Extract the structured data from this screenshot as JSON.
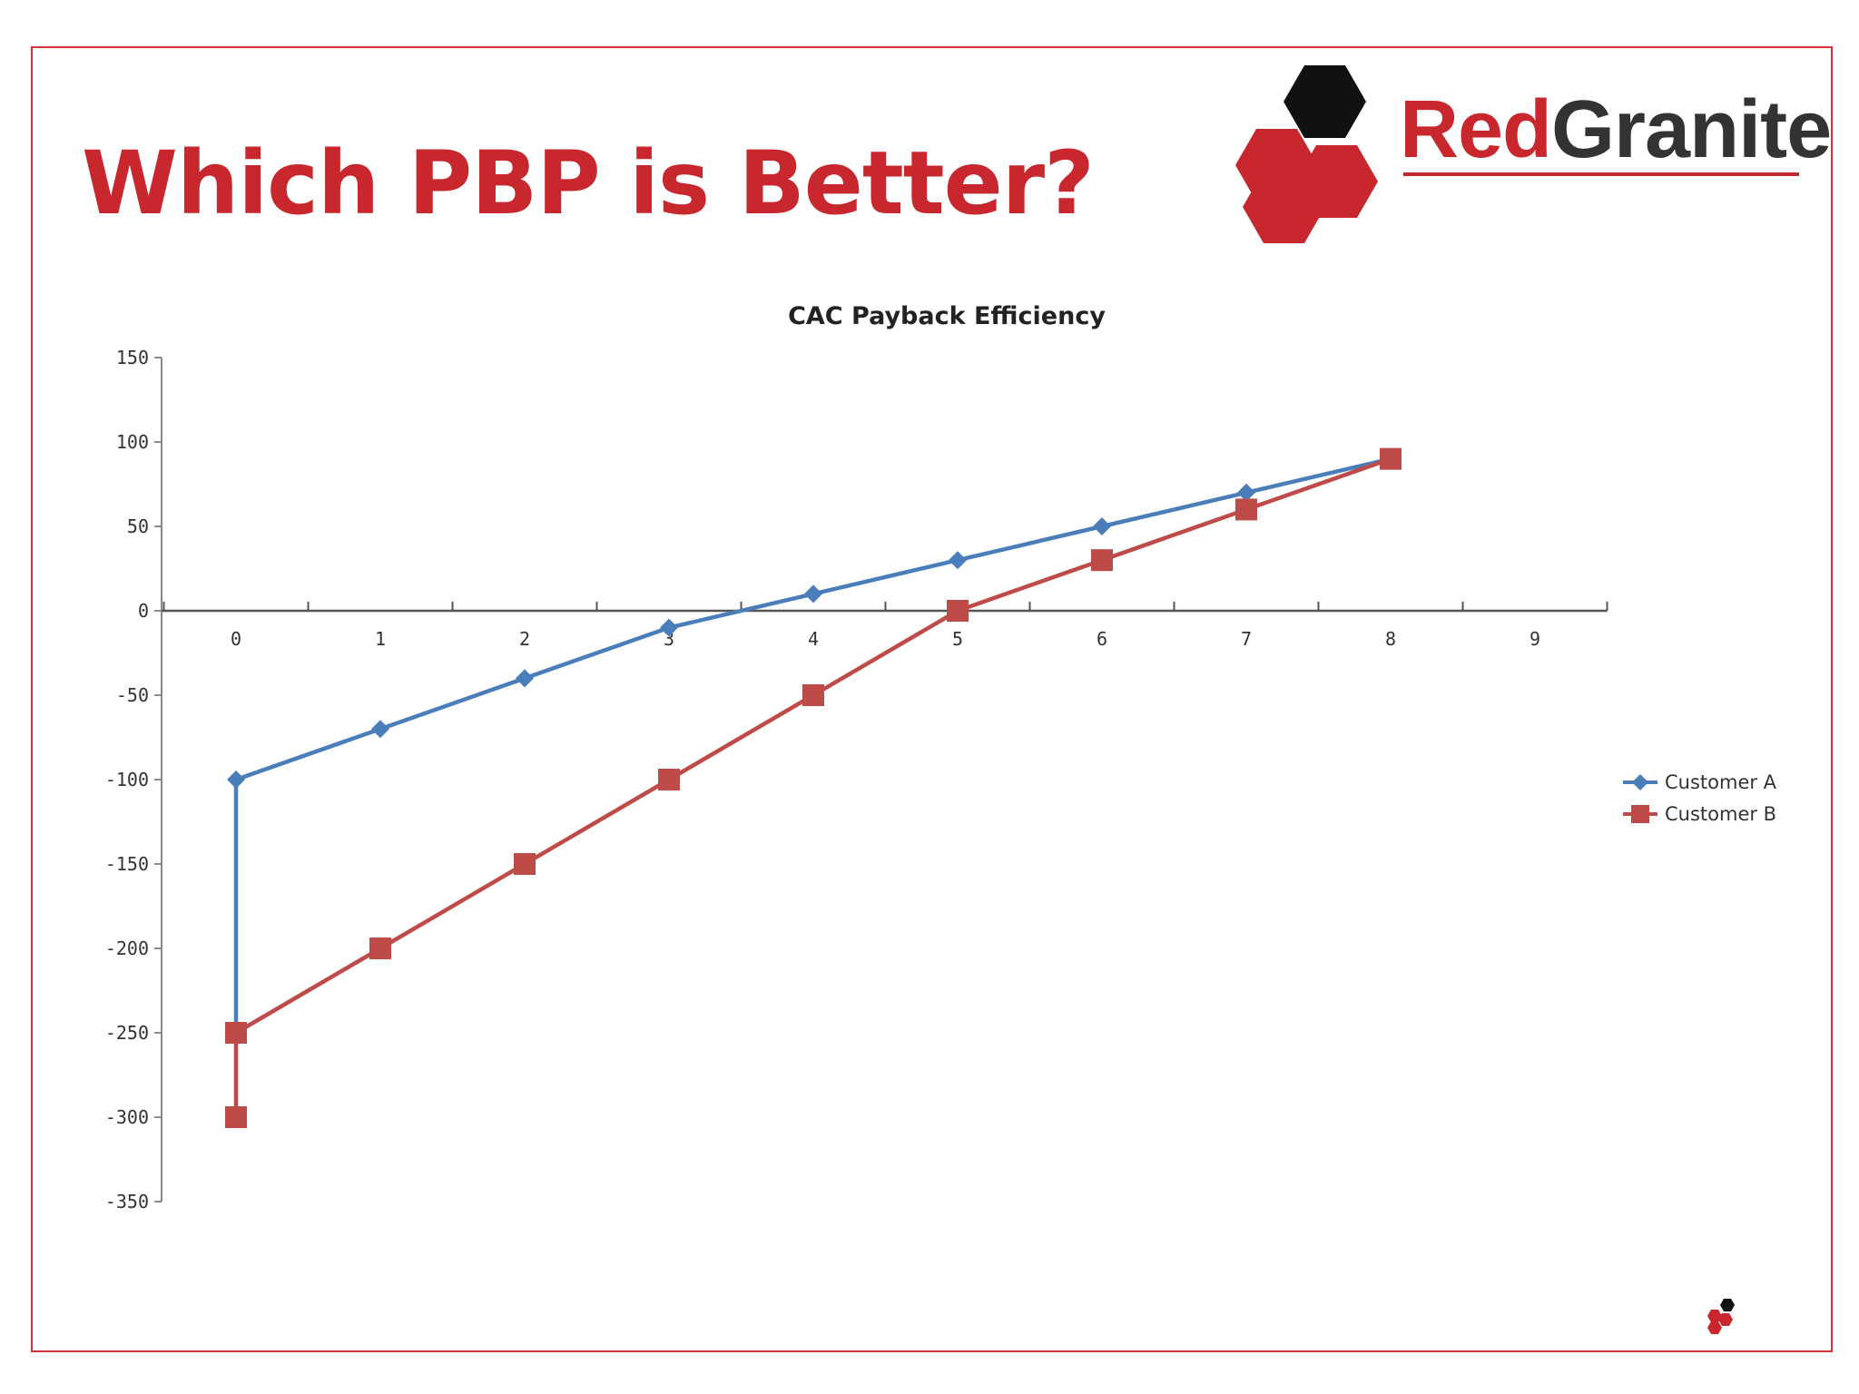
{
  "slide": {
    "title": "Which PBP is Better?"
  },
  "logo": {
    "brand_part1": "Red",
    "brand_part2": "Granite",
    "colors": {
      "red": "#c8282d",
      "dark": "#333333",
      "hex_black": "#111111"
    }
  },
  "colors": {
    "frame": "#d0343a",
    "title": "#c8282d",
    "customer_a": "#4a7ebb",
    "customer_b": "#be4b48"
  },
  "chart_data": {
    "type": "line",
    "title": "CAC Payback Efficiency",
    "xlabel": "",
    "ylabel": "",
    "xlim": [
      -0.5,
      9.5
    ],
    "ylim": [
      -350,
      150
    ],
    "x_ticks": [
      0,
      1,
      2,
      3,
      4,
      5,
      6,
      7,
      8,
      9
    ],
    "y_ticks": [
      150,
      100,
      50,
      0,
      -50,
      -100,
      -150,
      -200,
      -250,
      -300,
      -350
    ],
    "grid": false,
    "legend_position": "right",
    "series": [
      {
        "name": "Customer A",
        "marker": "diamond",
        "color": "#4a7ebb",
        "points": [
          [
            0,
            -250
          ],
          [
            0,
            -100
          ],
          [
            1,
            -70
          ],
          [
            2,
            -40
          ],
          [
            3,
            -10
          ],
          [
            4,
            10
          ],
          [
            5,
            30
          ],
          [
            6,
            50
          ],
          [
            7,
            70
          ],
          [
            8,
            90
          ]
        ]
      },
      {
        "name": "Customer B",
        "marker": "square",
        "color": "#be4b48",
        "points": [
          [
            0,
            -300
          ],
          [
            0,
            -250
          ],
          [
            1,
            -200
          ],
          [
            2,
            -150
          ],
          [
            3,
            -100
          ],
          [
            4,
            -50
          ],
          [
            5,
            0
          ],
          [
            6,
            30
          ],
          [
            7,
            60
          ],
          [
            8,
            90
          ]
        ]
      }
    ]
  }
}
